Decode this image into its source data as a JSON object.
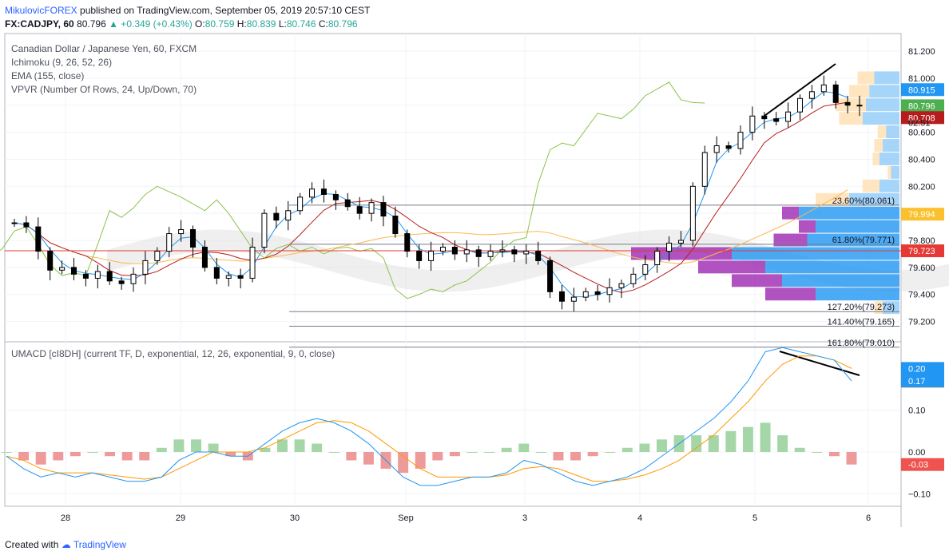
{
  "header": {
    "author": "MikulovicFOREX",
    "published": "published on TradingView.com, September 05, 2019 20:57:10 CEST",
    "symbol": "FX:CADJPY, 60",
    "last": "80.796",
    "change": "▲ +0.349 (+0.43%)",
    "o_label": "O:",
    "o": "80.759",
    "h_label": "H:",
    "h": "80.839",
    "l_label": "L:",
    "l": "80.746",
    "c_label": "C:",
    "c": "80.796"
  },
  "legend": {
    "title": "Canadian Dollar / Japanese Yen, 60, FXCM",
    "ichimoku": "Ichimoku (9, 26, 52, 26)",
    "ema": "EMA (155, close)",
    "vpvr": "VPVR (Number Of Rows, 24, Up/Down, 70)",
    "macd": "UMACD [cI8DH] (current TF, D, exponential, 12, 26, exponential, 9, 0, close)"
  },
  "footer": {
    "created": "Created with",
    "brand": "TradingView"
  },
  "colors": {
    "up": "#26a69a",
    "down": "#ef5350",
    "tenkan": "#2196f3",
    "kijun": "#b71c1c",
    "chikou": "#8bc34a",
    "ema": "#ffb74d",
    "vpvr_up": "#90caf9",
    "vpvr_down": "#ffe0b2",
    "vpvr_poc_up": "#2196f3",
    "vpvr_poc_down": "#9c27b0",
    "macd": "#2196f3",
    "signal": "#ff9800",
    "hist_pos": "#a5d6a7",
    "hist_neg": "#ef9a9a"
  },
  "chart_data": [
    {
      "type": "candlestick",
      "title": "Canadian Dollar / Japanese Yen, 60, FXCM",
      "x_ticks": [
        "28",
        "29",
        "30",
        "Sep",
        "3",
        "4",
        "5",
        "6"
      ],
      "ylim": [
        79.05,
        81.33
      ],
      "y_ticks": [
        79.2,
        79.4,
        79.6,
        79.8,
        80.0,
        80.2,
        80.4,
        80.6,
        80.8,
        81.0,
        81.2
      ],
      "close_series": [
        79.93,
        79.9,
        79.72,
        79.58,
        79.6,
        79.55,
        79.52,
        79.57,
        79.5,
        79.48,
        79.55,
        79.65,
        79.72,
        79.85,
        79.88,
        79.75,
        79.6,
        79.52,
        79.54,
        79.52,
        79.75,
        80.0,
        79.95,
        80.02,
        80.12,
        80.18,
        80.14,
        80.1,
        80.05,
        80.0,
        80.08,
        79.98,
        79.85,
        79.72,
        79.65,
        79.72,
        79.75,
        79.7,
        79.73,
        79.68,
        79.72,
        79.73,
        79.7,
        79.72,
        79.65,
        79.42,
        79.35,
        79.38,
        79.42,
        79.4,
        79.45,
        79.48,
        79.55,
        79.62,
        79.72,
        79.78,
        79.8,
        80.2,
        80.45,
        80.5,
        80.48,
        80.6,
        80.72,
        80.7,
        80.68,
        80.75,
        80.85,
        80.9,
        80.95,
        80.82,
        80.8,
        80.796
      ],
      "price_labels": [
        {
          "value": 80.915,
          "text": "80.915",
          "color": "#2196f3"
        },
        {
          "value": 80.796,
          "text": "80.796",
          "color": "#4caf50"
        },
        {
          "value": 80.708,
          "text": "80.708",
          "color": "#b71c1c"
        },
        {
          "value": 79.994,
          "text": "79.994",
          "color": "#fbc02d"
        },
        {
          "value": 79.723,
          "text": "79.723",
          "color": "#e53935"
        }
      ],
      "price_line_text": "80.796",
      "countdown": "02:51",
      "fib_levels": [
        {
          "value": 80.061,
          "text": "23.60%(80.061)"
        },
        {
          "value": 79.771,
          "text": "61.80%(79.771)"
        },
        {
          "value": 79.273,
          "text": "127.20%(79.273)"
        },
        {
          "value": 79.165,
          "text": "141.40%(79.165)"
        },
        {
          "value": 79.01,
          "text": "161.80%(79.010)"
        }
      ],
      "red_line": 79.723,
      "vpvr": [
        {
          "price": 81.0,
          "up": 0.15,
          "down": 0.1
        },
        {
          "price": 80.9,
          "up": 0.18,
          "down": 0.12
        },
        {
          "price": 80.8,
          "up": 0.2,
          "down": 0.18
        },
        {
          "price": 80.7,
          "up": 0.22,
          "down": 0.14
        },
        {
          "price": 80.6,
          "up": 0.08,
          "down": 0.05
        },
        {
          "price": 80.5,
          "up": 0.1,
          "down": 0.05
        },
        {
          "price": 80.4,
          "up": 0.12,
          "down": 0.04
        },
        {
          "price": 80.3,
          "up": 0.05,
          "down": 0.02
        },
        {
          "price": 80.2,
          "up": 0.12,
          "down": 0.1
        },
        {
          "price": 80.1,
          "up": 0.3,
          "down": 0.2
        },
        {
          "price": 80.0,
          "up": 0.6,
          "down": 0.1
        },
        {
          "price": 79.9,
          "up": 0.5,
          "down": 0.1
        },
        {
          "price": 79.8,
          "up": 0.55,
          "down": 0.2
        },
        {
          "price": 79.7,
          "up": 1.0,
          "down": 0.6
        },
        {
          "price": 79.6,
          "up": 0.8,
          "down": 0.4
        },
        {
          "price": 79.5,
          "up": 0.7,
          "down": 0.3
        },
        {
          "price": 79.4,
          "up": 0.5,
          "down": 0.3
        },
        {
          "price": 79.3,
          "up": 0.1,
          "down": 0.05
        }
      ]
    },
    {
      "type": "line",
      "title": "UMACD [cI8DH] (current TF, D, exponential, 12, 26, exponential, 9, 0, close)",
      "ylim": [
        -0.13,
        0.26
      ],
      "y_ticks": [
        -0.1,
        0.0,
        0.1
      ],
      "y_tick_labels": [
        "−0.10",
        "0.00",
        "0.10"
      ],
      "price_labels": [
        {
          "value": 0.2,
          "text": "0.20",
          "color": "#2196f3"
        },
        {
          "value": 0.2,
          "text": "0.20",
          "color": "#ff9800"
        },
        {
          "value": 0.17,
          "text": "0.17",
          "color": "#2196f3"
        },
        {
          "value": -0.03,
          "text": "-0.03",
          "color": "#ef5350"
        }
      ],
      "series": [
        {
          "values": [
            -0.01,
            -0.04,
            -0.06,
            -0.05,
            -0.06,
            -0.05,
            -0.06,
            -0.07,
            -0.07,
            -0.06,
            -0.02,
            0.0,
            0.0,
            -0.01,
            -0.01,
            0.02,
            0.05,
            0.07,
            0.08,
            0.07,
            0.05,
            0.02,
            -0.02,
            -0.06,
            -0.08,
            -0.08,
            -0.07,
            -0.06,
            -0.06,
            -0.05,
            -0.02,
            -0.03,
            -0.05,
            -0.07,
            -0.08,
            -0.07,
            -0.06,
            -0.04,
            -0.01,
            0.02,
            0.05,
            0.08,
            0.12,
            0.17,
            0.24,
            0.25,
            0.24,
            0.23,
            0.22,
            0.17
          ]
        },
        {
          "values": [
            -0.01,
            -0.02,
            -0.04,
            -0.05,
            -0.05,
            -0.05,
            -0.055,
            -0.06,
            -0.065,
            -0.06,
            -0.04,
            -0.02,
            0.0,
            0.0,
            0.0,
            0.01,
            0.03,
            0.05,
            0.07,
            0.075,
            0.07,
            0.05,
            0.02,
            -0.01,
            -0.04,
            -0.06,
            -0.06,
            -0.06,
            -0.06,
            -0.055,
            -0.04,
            -0.035,
            -0.04,
            -0.055,
            -0.07,
            -0.07,
            -0.065,
            -0.055,
            -0.04,
            -0.02,
            0.01,
            0.04,
            0.08,
            0.12,
            0.17,
            0.21,
            0.23,
            0.23,
            0.22,
            0.2
          ]
        },
        {
          "values": [
            0.0,
            -0.02,
            -0.03,
            -0.02,
            -0.01,
            0.0,
            -0.01,
            -0.02,
            -0.02,
            0.01,
            0.03,
            0.03,
            0.02,
            -0.01,
            -0.02,
            0.01,
            0.03,
            0.03,
            0.02,
            0.0,
            -0.02,
            -0.03,
            -0.04,
            -0.05,
            -0.04,
            -0.02,
            -0.01,
            0.0,
            0.0,
            0.01,
            0.02,
            0.0,
            -0.02,
            -0.02,
            -0.01,
            0.0,
            0.01,
            0.02,
            0.03,
            0.04,
            0.04,
            0.04,
            0.05,
            0.06,
            0.07,
            0.04,
            0.01,
            0.0,
            -0.01,
            -0.03
          ]
        }
      ]
    }
  ]
}
